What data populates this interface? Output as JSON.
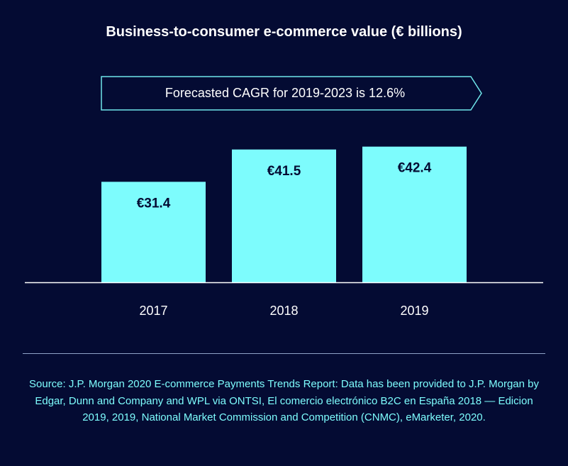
{
  "chart_data": {
    "type": "bar",
    "title": "Business-to-consumer e-commerce value (€ billions)",
    "annotation": "Forecasted CAGR for 2019-2023 is 12.6%",
    "categories": [
      "2017",
      "2018",
      "2019"
    ],
    "values": [
      31.4,
      41.5,
      42.4
    ],
    "data_labels": [
      "€31.4",
      "€41.5",
      "€42.4"
    ],
    "ylim": [
      0,
      43
    ],
    "grid": false,
    "colors": {
      "bar": "#7dfcfd",
      "background": "#040b33",
      "text": "#ffffff",
      "label": "#040b33"
    }
  },
  "source": "Source: J.P. Morgan 2020 E-commerce Payments Trends Report: Data has been provided to J.P. Morgan by Edgar, Dunn and Company and WPL via ONTSI, El comercio electrónico B2C en España 2018 — Edicion 2019, 2019, National Market Commission and Competition (CNMC), eMarketer, 2020."
}
